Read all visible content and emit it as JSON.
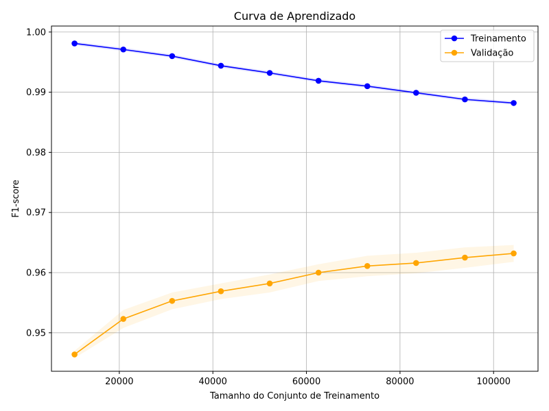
{
  "chart_data": {
    "type": "line",
    "title": "Curva de Aprendizado",
    "xlabel": "Tamanho do Conjunto de Treinamento",
    "ylabel": "F1-score",
    "xlim": [
      5500,
      109500
    ],
    "ylim": [
      0.9436,
      1.001
    ],
    "xticks": [
      20000,
      40000,
      60000,
      80000,
      100000
    ],
    "xtick_labels": [
      "20000",
      "40000",
      "60000",
      "80000",
      "100000"
    ],
    "yticks": [
      0.95,
      0.96,
      0.97,
      0.98,
      0.99,
      1.0
    ],
    "ytick_labels": [
      "0.95",
      "0.96",
      "0.97",
      "0.98",
      "0.99",
      "1.00"
    ],
    "grid": true,
    "legend_position": "top-right",
    "x": [
      10430,
      20860,
      31290,
      41720,
      52150,
      62580,
      73010,
      83440,
      93870,
      104300
    ],
    "series": [
      {
        "name": "Treinamento",
        "color": "#0000ff",
        "band_color": "#0000ff",
        "values": [
          0.9981,
          0.9971,
          0.996,
          0.9944,
          0.9932,
          0.9919,
          0.991,
          0.9899,
          0.9888,
          0.9882
        ],
        "lower": [
          0.9978,
          0.9968,
          0.9957,
          0.9941,
          0.9929,
          0.9916,
          0.9907,
          0.9896,
          0.9885,
          0.9879
        ],
        "upper": [
          0.9984,
          0.9974,
          0.9963,
          0.9947,
          0.9935,
          0.9922,
          0.9913,
          0.9902,
          0.9891,
          0.9885
        ]
      },
      {
        "name": "Validação",
        "color": "#ffa500",
        "band_color": "#ffa500",
        "values": [
          0.9464,
          0.9523,
          0.9553,
          0.9569,
          0.9582,
          0.96,
          0.9611,
          0.9616,
          0.9625,
          0.9632
        ],
        "lower": [
          0.9458,
          0.9508,
          0.9539,
          0.9556,
          0.9567,
          0.9586,
          0.9594,
          0.9599,
          0.9608,
          0.9618
        ],
        "upper": [
          0.947,
          0.9538,
          0.9567,
          0.9582,
          0.9597,
          0.9614,
          0.9628,
          0.9633,
          0.9642,
          0.9646
        ]
      }
    ]
  }
}
